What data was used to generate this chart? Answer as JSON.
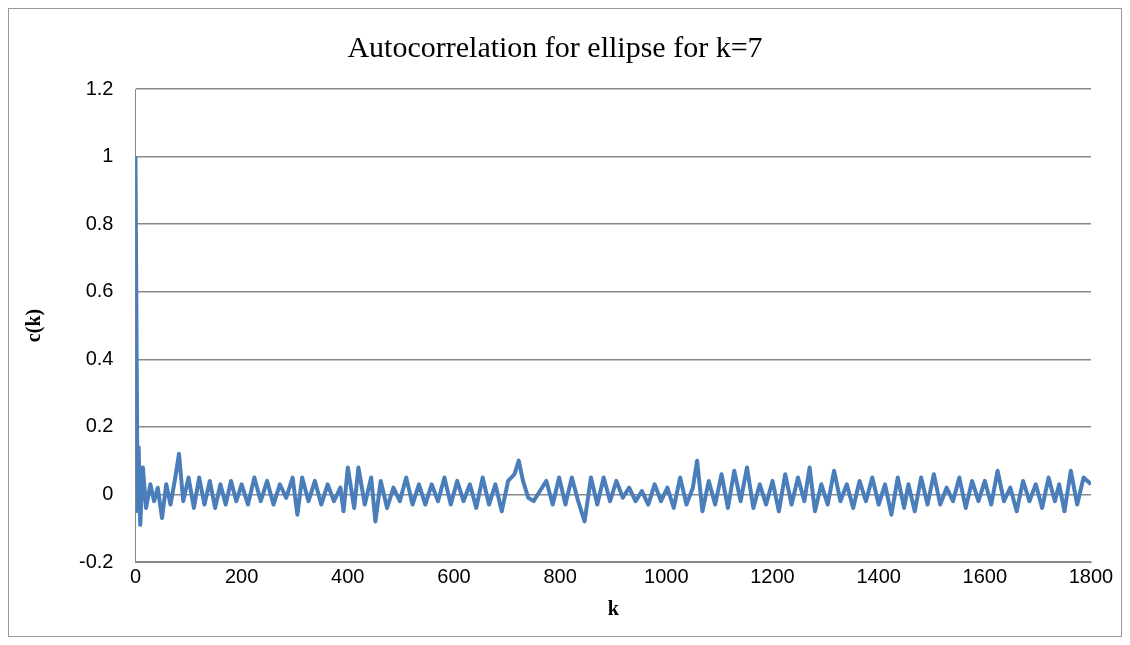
{
  "chart_data": {
    "type": "line",
    "title": "Autocorrelation for ellipse for k=7",
    "xlabel": "k",
    "ylabel": "c(k)",
    "xlim": [
      0,
      1800
    ],
    "xticks": [
      0,
      200,
      400,
      600,
      800,
      1000,
      1200,
      1400,
      1600,
      1800
    ],
    "ylim": [
      -0.2,
      1.2
    ],
    "yticks": [
      -0.2,
      0,
      0.2,
      0.4,
      0.6,
      0.8,
      1,
      1.2
    ],
    "grid": "y",
    "legend": false,
    "marker": "none",
    "series": [
      {
        "color": "#4a7ebb",
        "x": [
          0,
          4,
          6,
          9,
          14,
          20,
          28,
          35,
          42,
          50,
          58,
          66,
          75,
          82,
          90,
          100,
          110,
          120,
          130,
          140,
          150,
          160,
          170,
          180,
          190,
          200,
          212,
          224,
          236,
          248,
          260,
          272,
          284,
          296,
          305,
          314,
          326,
          338,
          350,
          362,
          374,
          386,
          392,
          400,
          412,
          420,
          432,
          444,
          452,
          462,
          474,
          486,
          498,
          510,
          522,
          534,
          546,
          558,
          570,
          582,
          594,
          606,
          618,
          630,
          642,
          654,
          666,
          678,
          690,
          702,
          714,
          722,
          730,
          740,
          750,
          762,
          774,
          786,
          798,
          810,
          822,
          834,
          846,
          858,
          870,
          882,
          894,
          906,
          918,
          930,
          942,
          954,
          966,
          978,
          990,
          1002,
          1014,
          1026,
          1038,
          1050,
          1058,
          1068,
          1080,
          1092,
          1104,
          1116,
          1128,
          1140,
          1152,
          1164,
          1176,
          1188,
          1200,
          1212,
          1224,
          1236,
          1248,
          1260,
          1270,
          1280,
          1292,
          1304,
          1316,
          1328,
          1340,
          1352,
          1364,
          1376,
          1388,
          1400,
          1412,
          1424,
          1436,
          1448,
          1456,
          1468,
          1480,
          1492,
          1504,
          1516,
          1528,
          1540,
          1552,
          1564,
          1576,
          1588,
          1600,
          1612,
          1624,
          1636,
          1648,
          1660,
          1672,
          1684,
          1696,
          1708,
          1720,
          1732,
          1740,
          1750,
          1762,
          1774,
          1786,
          1800
        ],
        "values": [
          1,
          -0.05,
          0.14,
          -0.09,
          0.08,
          -0.04,
          0.03,
          -0.02,
          0.02,
          -0.07,
          0.03,
          -0.03,
          0.05,
          0.12,
          -0.02,
          0.05,
          -0.04,
          0.05,
          -0.03,
          0.04,
          -0.04,
          0.03,
          -0.03,
          0.04,
          -0.02,
          0.03,
          -0.03,
          0.05,
          -0.02,
          0.04,
          -0.03,
          0.03,
          -0.01,
          0.05,
          -0.06,
          0.05,
          -0.02,
          0.04,
          -0.03,
          0.03,
          -0.02,
          0.02,
          -0.05,
          0.08,
          -0.04,
          0.08,
          -0.03,
          0.05,
          -0.08,
          0.04,
          -0.04,
          0.02,
          -0.02,
          0.05,
          -0.03,
          0.03,
          -0.03,
          0.03,
          -0.02,
          0.05,
          -0.03,
          0.04,
          -0.02,
          0.03,
          -0.04,
          0.05,
          -0.03,
          0.03,
          -0.05,
          0.04,
          0.06,
          0.1,
          0.04,
          -0.01,
          -0.02,
          0.01,
          0.04,
          -0.03,
          0.05,
          -0.03,
          0.05,
          -0.02,
          -0.08,
          0.05,
          -0.03,
          0.05,
          -0.02,
          0.04,
          -0.01,
          0.02,
          -0.02,
          0.01,
          -0.03,
          0.03,
          -0.02,
          0.02,
          -0.04,
          0.05,
          -0.03,
          0.02,
          0.1,
          -0.05,
          0.04,
          -0.03,
          0.06,
          -0.04,
          0.07,
          -0.02,
          0.08,
          -0.04,
          0.03,
          -0.03,
          0.04,
          -0.05,
          0.06,
          -0.03,
          0.05,
          -0.02,
          0.08,
          -0.05,
          0.03,
          -0.03,
          0.07,
          -0.02,
          0.03,
          -0.04,
          0.04,
          -0.02,
          0.05,
          -0.03,
          0.03,
          -0.06,
          0.05,
          -0.04,
          0.03,
          -0.05,
          0.05,
          -0.03,
          0.06,
          -0.03,
          0.02,
          -0.02,
          0.05,
          -0.04,
          0.04,
          -0.02,
          0.04,
          -0.03,
          0.07,
          -0.02,
          0.02,
          -0.05,
          0.04,
          -0.02,
          0.03,
          -0.04,
          0.05,
          -0.02,
          0.03,
          -0.05,
          0.07,
          -0.03,
          0.05,
          0.03
        ]
      }
    ]
  }
}
